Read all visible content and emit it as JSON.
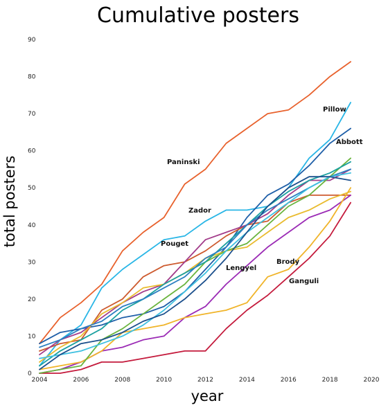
{
  "chart_data": {
    "type": "line",
    "title": "Cumulative posters",
    "xlabel": "year",
    "ylabel": "total posters",
    "xlim": [
      2004,
      2020
    ],
    "ylim": [
      0,
      90
    ],
    "xticks": [
      2004,
      2006,
      2008,
      2010,
      2012,
      2014,
      2016,
      2018,
      2020
    ],
    "yticks": [
      0,
      10,
      20,
      30,
      40,
      50,
      60,
      70,
      80,
      90
    ],
    "grid": false,
    "legend": "none",
    "series": [
      {
        "name": "Paninski",
        "color": "#e8612c",
        "x": [
          2004,
          2005,
          2006,
          2007,
          2008,
          2009,
          2010,
          2011,
          2012,
          2013,
          2014,
          2015,
          2016,
          2017,
          2018,
          2019
        ],
        "y": [
          8,
          15,
          19,
          24,
          33,
          38,
          42,
          51,
          55,
          62,
          66,
          70,
          71,
          75,
          80,
          84
        ]
      },
      {
        "name": "Pillow",
        "color": "#29b6e6",
        "x": [
          2004,
          2005,
          2006,
          2007,
          2008,
          2009,
          2010,
          2011,
          2012,
          2013,
          2014,
          2015,
          2016,
          2017,
          2018,
          2019
        ],
        "y": [
          2,
          9,
          13,
          23,
          28,
          32,
          36,
          37,
          41,
          44,
          44,
          45,
          50,
          58,
          63,
          73
        ]
      },
      {
        "name": "Abbott",
        "color": "#1f5fa8",
        "x": [
          2004,
          2005,
          2006,
          2007,
          2008,
          2009,
          2010,
          2011,
          2012,
          2013,
          2014,
          2015,
          2016,
          2017,
          2018,
          2019
        ],
        "y": [
          8,
          11,
          12,
          13,
          15,
          16,
          18,
          22,
          28,
          34,
          42,
          48,
          51,
          56,
          62,
          66
        ]
      },
      {
        "name": "Zador",
        "color": "#cd5a2e",
        "x": [
          2004,
          2005,
          2006,
          2007,
          2008,
          2009,
          2010,
          2011,
          2012,
          2013,
          2014,
          2015,
          2016,
          2017,
          2018,
          2019
        ],
        "y": [
          6,
          8,
          9,
          17,
          20,
          26,
          29,
          30,
          33,
          37,
          40,
          41,
          46,
          48,
          48,
          48
        ]
      },
      {
        "name": "Pouget",
        "color": "#a23c8a",
        "x": [
          2004,
          2005,
          2006,
          2007,
          2008,
          2009,
          2010,
          2011,
          2012,
          2013,
          2014,
          2015,
          2016,
          2017,
          2018,
          2019
        ],
        "y": [
          5,
          9,
          11,
          15,
          19,
          22,
          24,
          30,
          36,
          38,
          40,
          43,
          48,
          52,
          52,
          55
        ]
      },
      {
        "name": "Lengyel",
        "color": "#9b2bb5",
        "x": [
          2004,
          2005,
          2006,
          2007,
          2008,
          2009,
          2010,
          2011,
          2012,
          2013,
          2014,
          2015,
          2016,
          2017,
          2018,
          2019
        ],
        "y": [
          0,
          1,
          3,
          6,
          7,
          9,
          10,
          15,
          18,
          24,
          29,
          34,
          38,
          42,
          44,
          48
        ]
      },
      {
        "name": "Brody",
        "color": "#f0b429",
        "x": [
          2004,
          2005,
          2006,
          2007,
          2008,
          2009,
          2010,
          2011,
          2012,
          2013,
          2014,
          2015,
          2016,
          2017,
          2018,
          2019
        ],
        "y": [
          1,
          2,
          3,
          6,
          11,
          12,
          13,
          15,
          16,
          17,
          19,
          26,
          28,
          34,
          41,
          50
        ]
      },
      {
        "name": "Ganguli",
        "color": "#c41a3c",
        "x": [
          2004,
          2005,
          2006,
          2007,
          2008,
          2009,
          2010,
          2011,
          2012,
          2013,
          2014,
          2015,
          2016,
          2017,
          2018,
          2019
        ],
        "y": [
          0,
          0,
          1,
          3,
          3,
          4,
          5,
          6,
          6,
          12,
          17,
          21,
          26,
          31,
          37,
          46
        ]
      },
      {
        "name": "",
        "color": "#e9bb2e",
        "x": [
          2004,
          2005,
          2006,
          2007,
          2008,
          2009,
          2010,
          2011,
          2012,
          2013,
          2014,
          2015,
          2016,
          2017,
          2018,
          2019
        ],
        "y": [
          3,
          7,
          10,
          16,
          19,
          23,
          24,
          27,
          31,
          33,
          34,
          38,
          42,
          44,
          47,
          49
        ]
      },
      {
        "name": "",
        "color": "#6ab43e",
        "x": [
          2004,
          2005,
          2006,
          2007,
          2008,
          2009,
          2010,
          2011,
          2012,
          2013,
          2014,
          2015,
          2016,
          2017,
          2018,
          2019
        ],
        "y": [
          0,
          1,
          2,
          9,
          12,
          16,
          20,
          24,
          30,
          33,
          35,
          40,
          45,
          48,
          53,
          58
        ]
      },
      {
        "name": "",
        "color": "#1aa0a0",
        "x": [
          2004,
          2005,
          2006,
          2007,
          2008,
          2009,
          2010,
          2011,
          2012,
          2013,
          2014,
          2015,
          2016,
          2017,
          2018,
          2019
        ],
        "y": [
          2,
          6,
          9,
          12,
          17,
          20,
          24,
          27,
          30,
          35,
          40,
          45,
          49,
          52,
          54,
          57
        ]
      },
      {
        "name": "",
        "color": "#2c7fc1",
        "x": [
          2004,
          2005,
          2006,
          2007,
          2008,
          2009,
          2010,
          2011,
          2012,
          2013,
          2014,
          2015,
          2016,
          2017,
          2018,
          2019
        ],
        "y": [
          7,
          9,
          12,
          14,
          18,
          20,
          23,
          26,
          31,
          34,
          40,
          44,
          47,
          50,
          53,
          55
        ]
      },
      {
        "name": "",
        "color": "#3ec0e0",
        "x": [
          2004,
          2005,
          2006,
          2007,
          2008,
          2009,
          2010,
          2011,
          2012,
          2013,
          2014,
          2015,
          2016,
          2017,
          2018,
          2019
        ],
        "y": [
          4,
          5,
          6,
          8,
          10,
          13,
          17,
          22,
          27,
          33,
          38,
          42,
          46,
          50,
          53,
          54
        ]
      },
      {
        "name": "",
        "color": "#1b4f8c",
        "x": [
          2004,
          2005,
          2006,
          2007,
          2008,
          2009,
          2010,
          2011,
          2012,
          2013,
          2014,
          2015,
          2016,
          2017,
          2018,
          2019
        ],
        "y": [
          1,
          5,
          8,
          9,
          11,
          14,
          16,
          20,
          25,
          31,
          38,
          45,
          50,
          53,
          53,
          52
        ]
      }
    ]
  }
}
